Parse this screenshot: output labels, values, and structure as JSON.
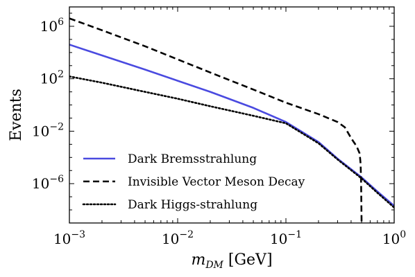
{
  "chart_data": {
    "type": "line",
    "xlabel": "m",
    "xlabel_sub": "DM",
    "xlabel_unit": " [GeV]",
    "ylabel": "Events",
    "x_scale": "log",
    "y_scale": "log",
    "xlim": [
      0.001,
      1
    ],
    "ylim": [
      1e-09,
      30000000.0
    ],
    "x_ticks": [
      {
        "value": 0.001,
        "base": "10",
        "exp": "−3"
      },
      {
        "value": 0.01,
        "base": "10",
        "exp": "−2"
      },
      {
        "value": 0.1,
        "base": "10",
        "exp": "−1"
      },
      {
        "value": 1,
        "base": "10",
        "exp": "0"
      }
    ],
    "y_ticks": [
      {
        "value": 1e-06,
        "base": "10",
        "exp": "−6"
      },
      {
        "value": 0.01,
        "base": "10",
        "exp": "−2"
      },
      {
        "value": 100,
        "base": "10",
        "exp": "2"
      },
      {
        "value": 1000000,
        "base": "10",
        "exp": "6"
      }
    ],
    "grid": false,
    "legend_position": "bottom-left",
    "series": [
      {
        "name": "Dark Bremsstrahlung",
        "color": "#4a4ae0",
        "dash": "solid",
        "x": [
          0.001,
          0.002,
          0.005,
          0.01,
          0.02,
          0.05,
          0.1,
          0.2,
          0.3,
          0.5,
          0.7,
          1.0
        ],
        "y": [
          40000,
          6000,
          500,
          70,
          10,
          0.6,
          0.05,
          0.0015,
          8e-05,
          3e-06,
          2.5e-07,
          2e-08
        ]
      },
      {
        "name": "Invisible Vector Meson Decay",
        "color": "#000000",
        "dash": "dashed",
        "x": [
          0.001,
          0.002,
          0.005,
          0.01,
          0.02,
          0.05,
          0.1,
          0.2,
          0.3,
          0.35,
          0.4,
          0.45,
          0.48,
          0.49,
          0.495,
          0.5
        ],
        "y": [
          4000000,
          500000,
          30000,
          3000,
          300,
          15,
          1.5,
          0.2,
          0.05,
          0.02,
          0.003,
          0.0007,
          0.0002,
          3e-05,
          1e-06,
          1e-09
        ]
      },
      {
        "name": "Dark Higgs-strahlung",
        "color": "#000000",
        "dash": "dotted",
        "x": [
          0.001,
          0.002,
          0.005,
          0.01,
          0.02,
          0.05,
          0.1,
          0.2,
          0.3,
          0.5,
          0.7,
          1.0
        ],
        "y": [
          150,
          50,
          10,
          3,
          0.8,
          0.15,
          0.04,
          0.0012,
          7e-05,
          2.5e-06,
          2e-07,
          1.5e-08
        ]
      }
    ]
  }
}
